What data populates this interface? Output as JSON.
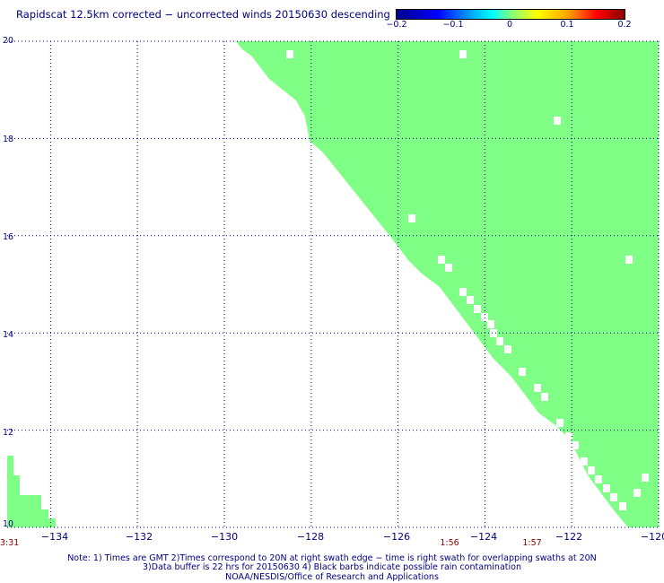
{
  "title": "Rapidscat 12.5km corrected − uncorrected winds 20150630 descending",
  "colorbar": {
    "ticks": [
      "−0.2",
      "−0.1",
      "0",
      "0.1",
      "0.2"
    ],
    "tick_values": [
      -0.2,
      -0.1,
      0,
      0.1,
      0.2
    ]
  },
  "map": {
    "lon_range": [
      -135,
      -120
    ],
    "lat_range": [
      10,
      20
    ],
    "lat_labels": [
      "20",
      "18",
      "16",
      "14",
      "12",
      "10"
    ],
    "lat_values": [
      20,
      18,
      16,
      14,
      12,
      10
    ],
    "lon_labels": [
      "−134",
      "−132",
      "−130",
      "−128",
      "−126",
      "−124",
      "−122",
      "−120"
    ],
    "lon_values": [
      -134,
      -132,
      -130,
      -128,
      -126,
      -124,
      -122,
      -120
    ],
    "swath_color": "#7fff85",
    "grid_color": "#000080",
    "swath_value": 0
  },
  "times": {
    "left": "3:31",
    "labels": [
      {
        "text": "1:56",
        "lon": -125
      },
      {
        "text": "1:57",
        "lon": -123
      }
    ]
  },
  "notes": [
    "Note: 1) Times are GMT 2)Times correspond to 20N at right swath edge − time is right swath for overlapping swaths at 20N",
    "3)Data buffer is 22 hrs for 20150630 4) Black barbs indicate possible rain contamination",
    "NOAA/NESDIS/Office of Research and Applications"
  ]
}
